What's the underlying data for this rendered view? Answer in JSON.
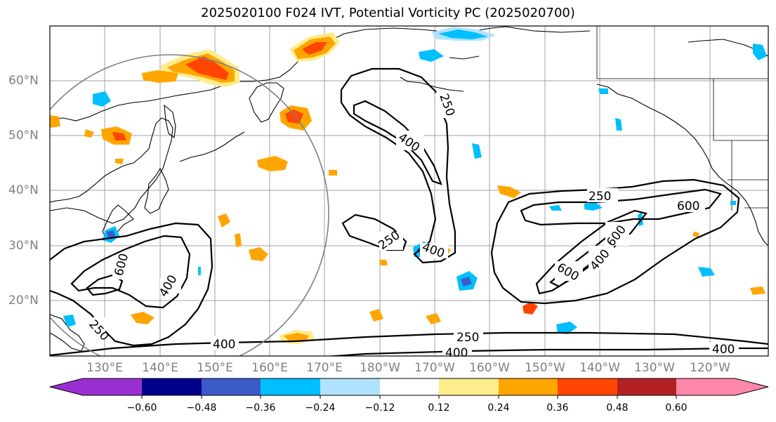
{
  "title": "2025020100 F024 IVT, Potential Vorticity PC (2025020700)",
  "lat_labels": [
    "20°N",
    "30°N",
    "40°N",
    "50°N",
    "60°N"
  ],
  "lon_labels": [
    "130°E",
    "140°E",
    "150°E",
    "160°E",
    "170°E",
    "180°W",
    "170°W",
    "160°W",
    "150°W",
    "140°W",
    "130°W",
    "120°W"
  ],
  "contour_labels": [
    "250",
    "400",
    "600"
  ],
  "colorbar": {
    "ticks": [
      "−0.60",
      "−0.48",
      "−0.36",
      "−0.24",
      "−0.12",
      "0.12",
      "0.24",
      "0.36",
      "0.48",
      "0.60"
    ],
    "colors": [
      "#9a2fd1",
      "#00008b",
      "#3a5bc8",
      "#00bfff",
      "#b0e2ff",
      "#ffffff",
      "#ffec8b",
      "#ffa500",
      "#ff4500",
      "#b22222",
      "#ff88aa"
    ]
  },
  "colors": {
    "frame": "#000000",
    "grid": "#a0a0a0",
    "circle": "#808080",
    "tick_label": "#808080"
  }
}
